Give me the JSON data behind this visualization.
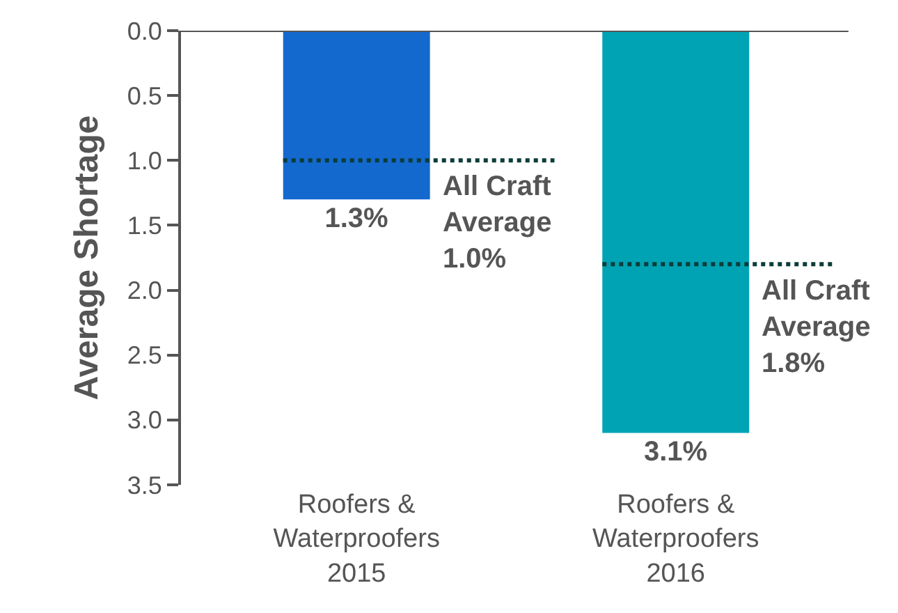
{
  "chart_data": {
    "type": "bar",
    "ylabel": "Average Shortage",
    "categories": [
      "Roofers &\nWaterproofers\n2015",
      "Roofers &\nWaterproofers\n2016"
    ],
    "values": [
      1.3,
      3.1
    ],
    "colors": [
      "#1469cf",
      "#00a3b4"
    ],
    "value_labels": [
      "1.3%",
      "3.1%"
    ],
    "ylim": [
      3.5,
      0
    ],
    "yticks": [
      {
        "value": 0,
        "label": "0.0"
      },
      0.5,
      {
        "value": 1,
        "label": "1.0"
      },
      1.5,
      {
        "value": 2,
        "label": "2.0"
      },
      2.5,
      {
        "value": 3,
        "label": "3.0"
      },
      3.5
    ],
    "ref_lines": [
      {
        "axis": "y",
        "value": 1.0,
        "label": "All Craft\nAverage\n1.0%",
        "color": "#0b3d3a",
        "line_style": "dotted"
      },
      {
        "axis": "y",
        "value": 1.8,
        "label": "All Craft\nAverage\n1.8%",
        "color": "#0b3d3a",
        "line_style": "dotted"
      }
    ],
    "grid": false
  }
}
